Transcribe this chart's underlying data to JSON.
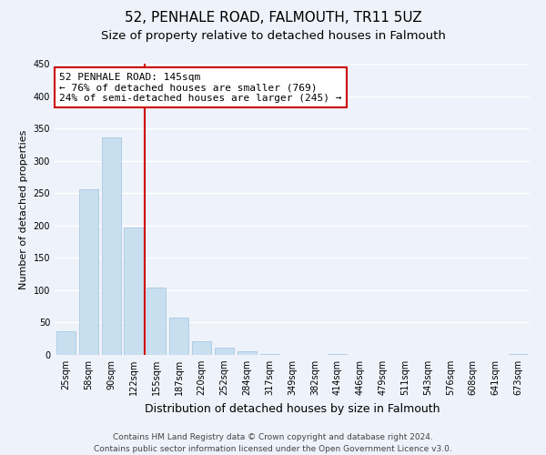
{
  "title": "52, PENHALE ROAD, FALMOUTH, TR11 5UZ",
  "subtitle": "Size of property relative to detached houses in Falmouth",
  "xlabel": "Distribution of detached houses by size in Falmouth",
  "ylabel": "Number of detached properties",
  "bar_labels": [
    "25sqm",
    "58sqm",
    "90sqm",
    "122sqm",
    "155sqm",
    "187sqm",
    "220sqm",
    "252sqm",
    "284sqm",
    "317sqm",
    "349sqm",
    "382sqm",
    "414sqm",
    "446sqm",
    "479sqm",
    "511sqm",
    "543sqm",
    "576sqm",
    "608sqm",
    "641sqm",
    "673sqm"
  ],
  "bar_heights": [
    36,
    256,
    336,
    197,
    104,
    57,
    21,
    11,
    5,
    1,
    0,
    0,
    1,
    0,
    0,
    0,
    0,
    0,
    0,
    0,
    2
  ],
  "bar_color": "#c8dff0",
  "bar_edge_color": "#a0c4df",
  "vline_color": "#cc0000",
  "annotation_line1": "52 PENHALE ROAD: 145sqm",
  "annotation_line2": "← 76% of detached houses are smaller (769)",
  "annotation_line3": "24% of semi-detached houses are larger (245) →",
  "annotation_box_color": "white",
  "annotation_box_edge": "#cc0000",
  "ylim": [
    0,
    450
  ],
  "yticks": [
    0,
    50,
    100,
    150,
    200,
    250,
    300,
    350,
    400,
    450
  ],
  "footer": "Contains HM Land Registry data © Crown copyright and database right 2024.\nContains public sector information licensed under the Open Government Licence v3.0.",
  "bg_color": "#eef2fa",
  "grid_color": "white",
  "title_fontsize": 11,
  "subtitle_fontsize": 9.5,
  "xlabel_fontsize": 9,
  "ylabel_fontsize": 8,
  "tick_fontsize": 7,
  "annotation_fontsize": 8,
  "footer_fontsize": 6.5
}
